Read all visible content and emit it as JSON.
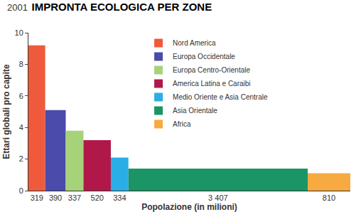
{
  "chart_data": {
    "type": "bar",
    "title": "IMPRONTA ECOLOGICA PER ZONE",
    "subtitle": "2001",
    "ylabel": "Ettari globali pro capite",
    "xlabel": "Popolazione (in milioni)",
    "categories": [
      "Nord America",
      "Europa Occidentale",
      "Europa Centro-Orientale",
      "America Latina e Caraibi",
      "Medio Oriente e Asia Centrale",
      "Asia Orientale",
      "Africa"
    ],
    "values": [
      9.2,
      5.1,
      3.8,
      3.2,
      2.1,
      1.4,
      1.1
    ],
    "widths": [
      319,
      390,
      337,
      520,
      334,
      3407,
      810
    ],
    "width_labels": [
      "319",
      "390",
      "337",
      "520",
      "334",
      "3 407",
      "810"
    ],
    "colors": [
      "#f05a3c",
      "#4a4bab",
      "#a6d27a",
      "#b0184a",
      "#2aaee6",
      "#1b9466",
      "#f7aa40"
    ],
    "xlim": [
      0,
      6117
    ],
    "ylim": [
      0,
      10
    ],
    "yticks": [
      0,
      2,
      4,
      6,
      8,
      10
    ],
    "legend": "top-right",
    "grid": false
  }
}
